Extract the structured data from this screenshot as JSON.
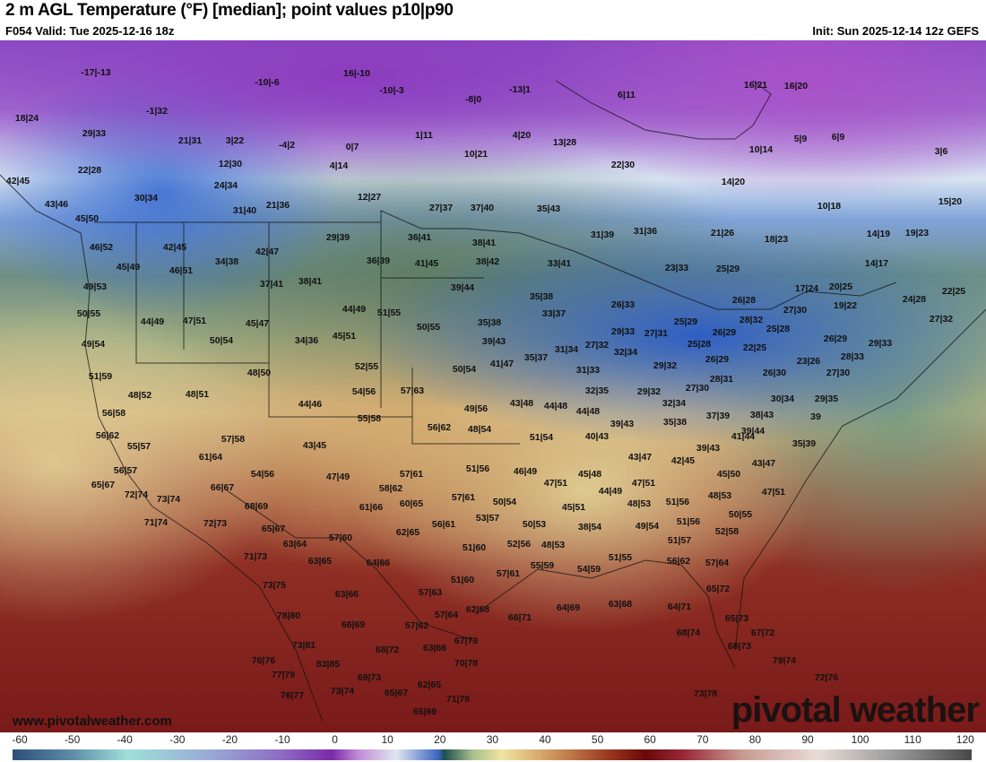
{
  "header": {
    "title": "2 m AGL Temperature (°F) [median]; point values p10|p90",
    "valid": "F054 Valid: Tue 2025-12-16 18z",
    "init": "Init: Sun 2025-12-14 12z GEFS"
  },
  "map": {
    "watermark_url": "www.pivotalweather.com",
    "logo": "pivotal weather",
    "point_values": [
      "-17|-13",
      "-10|-6",
      "16|-10",
      "-10|-3",
      "-8|0",
      "-13|1",
      "6|11",
      "16|21",
      "16|20",
      "18|24",
      "-1|32",
      "29|33",
      "21|31",
      "3|22",
      "-4|2",
      "0|7",
      "1|11",
      "4|20",
      "13|28",
      "10|21",
      "5|9",
      "6|9",
      "10|14",
      "3|6",
      "22|28",
      "12|30",
      "4|14",
      "22|30",
      "14|20",
      "24|34",
      "42|45",
      "30|34",
      "12|27",
      "10|18",
      "15|20",
      "43|46",
      "31|40",
      "21|36",
      "27|37",
      "37|40",
      "35|43",
      "45|50",
      "21|26",
      "18|23",
      "14|19",
      "19|23",
      "46|52",
      "42|45",
      "42|47",
      "29|39",
      "36|41",
      "38|41",
      "31|39",
      "31|36",
      "45|49",
      "34|38",
      "36|39",
      "41|45",
      "38|42",
      "33|41",
      "23|33",
      "25|29",
      "46|51",
      "14|17",
      "49|53",
      "37|41",
      "38|41",
      "39|44",
      "17|24",
      "20|25",
      "22|25",
      "35|38",
      "26|28",
      "24|28",
      "50|55",
      "26|33",
      "33|37",
      "44|49",
      "51|55",
      "19|22",
      "27|30",
      "44|49",
      "47|51",
      "45|47",
      "28|32",
      "27|32",
      "35|38",
      "50|55",
      "25|29",
      "25|28",
      "29|33",
      "27|31",
      "26|29",
      "34|36",
      "45|51",
      "50|54",
      "49|54",
      "39|43",
      "25|28",
      "22|25",
      "26|29",
      "29|33",
      "31|34",
      "27|32",
      "32|34",
      "26|29",
      "28|33",
      "23|26",
      "41|47",
      "35|37",
      "29|32",
      "48|50",
      "52|55",
      "50|54",
      "31|33",
      "27|30",
      "28|31",
      "26|30",
      "51|59",
      "54|56",
      "57|63",
      "27|30",
      "32|35",
      "29|32",
      "48|52",
      "48|51",
      "44|46",
      "43|48",
      "44|48",
      "44|48",
      "32|34",
      "30|34",
      "29|35",
      "49|56",
      "56|58",
      "55|58",
      "35|38",
      "37|39",
      "38|43",
      "39",
      "56|62",
      "48|54",
      "39|43",
      "39|44",
      "56|62",
      "57|58",
      "51|54",
      "40|43",
      "41|44",
      "35|39",
      "55|57",
      "43|45",
      "39|43",
      "61|64",
      "43|47",
      "42|45",
      "43|47",
      "57|61",
      "51|56",
      "46|49",
      "56|57",
      "54|56",
      "45|48",
      "45|50",
      "47|49",
      "47|51",
      "47|51",
      "65|67",
      "66|67",
      "58|62",
      "44|49",
      "47|51",
      "72|74",
      "73|74",
      "57|61",
      "48|53",
      "68|69",
      "61|66",
      "60|65",
      "50|54",
      "48|53",
      "51|56",
      "45|51",
      "50|55",
      "53|57",
      "71|74",
      "72|73",
      "65|67",
      "56|61",
      "50|53",
      "38|54",
      "49|54",
      "51|56",
      "62|65",
      "52|58",
      "57|60",
      "63|64",
      "52|56",
      "48|53",
      "51|60",
      "51|57",
      "71|73",
      "63|65",
      "64|66",
      "55|59",
      "51|55",
      "56|62",
      "57|64",
      "57|61",
      "54|59",
      "51|60",
      "73|75",
      "63|66",
      "57|63",
      "65|72",
      "66|71",
      "64|69",
      "63|68",
      "62|68",
      "57|64",
      "64|71",
      "78|80",
      "66|69",
      "57|62",
      "65|73",
      "68|74",
      "67|72",
      "67|73",
      "73|81",
      "68|72",
      "63|66",
      "68|73",
      "76|76",
      "83|85",
      "70|78",
      "79|74",
      "77|79",
      "69|73",
      "62|65",
      "72|76",
      "65|67",
      "73|74",
      "71|78",
      "76|77",
      "73|78",
      "65|69"
    ]
  },
  "colorbar": {
    "unit": "°F",
    "ticks": [
      "-60",
      "-50",
      "-40",
      "-30",
      "-20",
      "-10",
      "0",
      "10",
      "20",
      "30",
      "40",
      "50",
      "60",
      "70",
      "80",
      "90",
      "100",
      "110",
      "120"
    ]
  }
}
